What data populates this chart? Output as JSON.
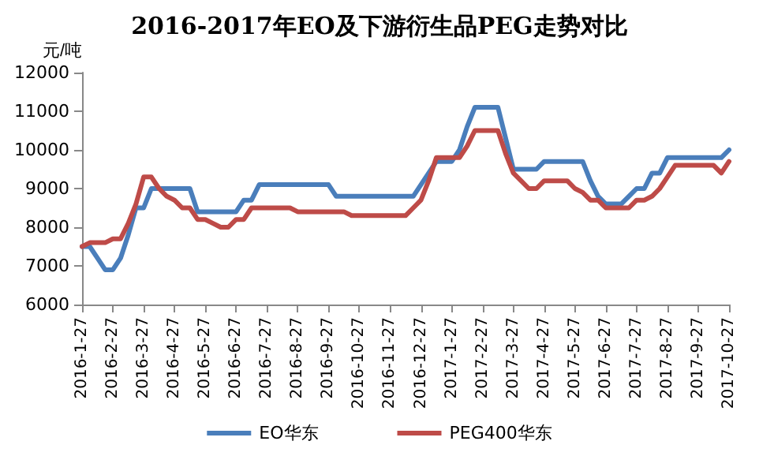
{
  "chart_data": {
    "type": "line",
    "title": "2016-2017年EO及下游衍生品PEG走势对比",
    "ylabel": "元/吨",
    "categories": [
      "2016-1-27",
      null,
      null,
      null,
      "2016-2-27",
      null,
      null,
      null,
      "2016-3-27",
      null,
      null,
      null,
      "2016-4-27",
      null,
      null,
      null,
      "2016-5-27",
      null,
      null,
      null,
      "2016-6-27",
      null,
      null,
      null,
      "2016-7-27",
      null,
      null,
      null,
      "2016-8-27",
      null,
      null,
      null,
      "2016-9-27",
      null,
      null,
      null,
      "2016-10-27",
      null,
      null,
      null,
      "2016-11-27",
      null,
      null,
      null,
      "2016-12-27",
      null,
      null,
      null,
      "2017-1-27",
      null,
      null,
      null,
      "2017-2-27",
      null,
      null,
      null,
      "2017-3-27",
      null,
      null,
      null,
      "2017-4-27",
      null,
      null,
      null,
      "2017-5-27",
      null,
      null,
      null,
      "2017-6-27",
      null,
      null,
      null,
      "2017-7-27",
      null,
      null,
      null,
      "2017-8-27",
      null,
      null,
      null,
      "2017-9-27",
      null,
      null,
      null,
      "2017-10-27"
    ],
    "series": [
      {
        "name": "EO华东",
        "color": "#4a7ebb",
        "values": [
          7500,
          7500,
          7200,
          6900,
          6900,
          7200,
          7800,
          8500,
          8500,
          9000,
          9000,
          9000,
          9000,
          9000,
          9000,
          8400,
          8400,
          8400,
          8400,
          8400,
          8400,
          8700,
          8700,
          9100,
          9100,
          9100,
          9100,
          9100,
          9100,
          9100,
          9100,
          9100,
          9100,
          8800,
          8800,
          8800,
          8800,
          8800,
          8800,
          8800,
          8800,
          8800,
          8800,
          8800,
          9100,
          9400,
          9700,
          9700,
          9700,
          10000,
          10600,
          11100,
          11100,
          11100,
          11100,
          10300,
          9500,
          9500,
          9500,
          9500,
          9700,
          9700,
          9700,
          9700,
          9700,
          9700,
          9200,
          8800,
          8600,
          8600,
          8600,
          8800,
          9000,
          9000,
          9400,
          9400,
          9800,
          9800,
          9800,
          9800,
          9800,
          9800,
          9800,
          9800,
          10000
        ]
      },
      {
        "name": "PEG400华东",
        "color": "#be4b48",
        "values": [
          7500,
          7600,
          7600,
          7600,
          7700,
          7700,
          8100,
          8600,
          9300,
          9300,
          9000,
          8800,
          8700,
          8500,
          8500,
          8200,
          8200,
          8100,
          8000,
          8000,
          8200,
          8200,
          8500,
          8500,
          8500,
          8500,
          8500,
          8500,
          8400,
          8400,
          8400,
          8400,
          8400,
          8400,
          8400,
          8300,
          8300,
          8300,
          8300,
          8300,
          8300,
          8300,
          8300,
          8500,
          8700,
          9200,
          9800,
          9800,
          9800,
          9800,
          10100,
          10500,
          10500,
          10500,
          10500,
          9900,
          9400,
          9200,
          9000,
          9000,
          9200,
          9200,
          9200,
          9200,
          9000,
          8900,
          8700,
          8700,
          8500,
          8500,
          8500,
          8500,
          8700,
          8700,
          8800,
          9000,
          9300,
          9600,
          9600,
          9600,
          9600,
          9600,
          9600,
          9400,
          9700
        ]
      }
    ],
    "ylim": [
      6000,
      12000
    ],
    "yticks": [
      6000,
      7000,
      8000,
      9000,
      10000,
      11000,
      12000
    ],
    "grid": false,
    "legend": "bottom",
    "marker": "none",
    "line_style": "solid"
  }
}
